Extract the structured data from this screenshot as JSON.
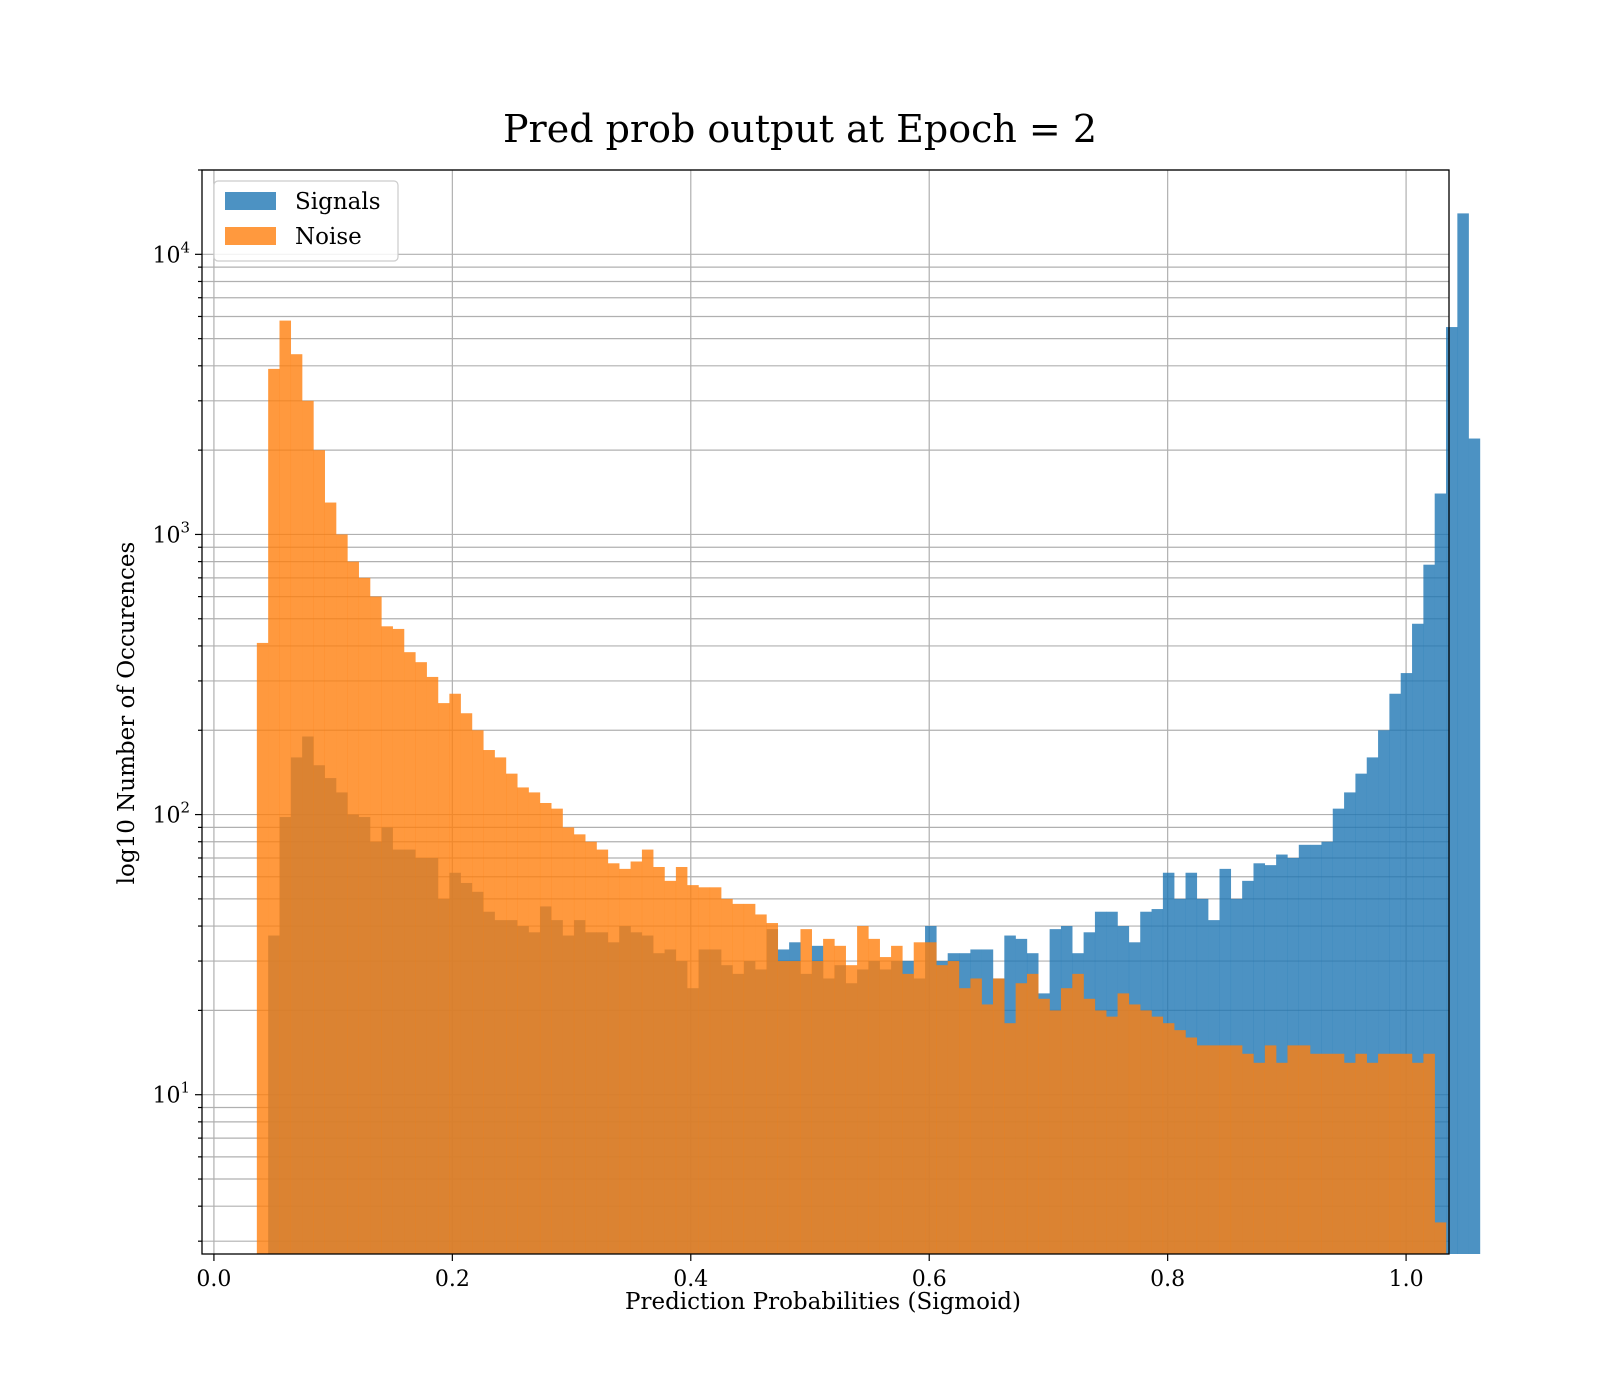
{
  "chart_data": {
    "type": "bar",
    "subtype": "overlapping histogram",
    "title": "Pred prob output at Epoch = 2",
    "xlabel": "Prediction Probabilities (Sigmoid)",
    "ylabel": "log10 Number of Occurences",
    "xlim": [
      -0.01,
      1.036
    ],
    "ylim": [
      2.7,
      20000
    ],
    "yscale": "log",
    "grid": true,
    "legend_position": "top-left",
    "x_ticks": [
      {
        "value": 0.0,
        "label": "0.0"
      },
      {
        "value": 0.2,
        "label": "0.2"
      },
      {
        "value": 0.4,
        "label": "0.4"
      },
      {
        "value": 0.6,
        "label": "0.6"
      },
      {
        "value": 0.8,
        "label": "0.8"
      },
      {
        "value": 1.0,
        "label": "1.0"
      }
    ],
    "y_ticks": [
      {
        "value": 10,
        "base": "10",
        "exp": "1"
      },
      {
        "value": 100,
        "base": "10",
        "exp": "2"
      },
      {
        "value": 1000,
        "base": "10",
        "exp": "3"
      },
      {
        "value": 10000,
        "base": "10",
        "exp": "4"
      }
    ],
    "bin_start": 0.036,
    "bin_width": 0.0095,
    "series": [
      {
        "name": "Signals",
        "color": "#1f77b4",
        "opacity": 0.8,
        "values": [
          0,
          37,
          98,
          160,
          190,
          150,
          135,
          120,
          100,
          98,
          80,
          90,
          75,
          75,
          70,
          70,
          50,
          62,
          57,
          53,
          45,
          42,
          42,
          40,
          38,
          47,
          42,
          37,
          42,
          38,
          38,
          35,
          40,
          38,
          37,
          32,
          33,
          30,
          24,
          33,
          33,
          29,
          27,
          30,
          28,
          39,
          33,
          35,
          27,
          34,
          26,
          29,
          25,
          28,
          30,
          28,
          30,
          30,
          26,
          40,
          30,
          32,
          32,
          33,
          33,
          26,
          37,
          36,
          32,
          23,
          39,
          40,
          32,
          38,
          45,
          45,
          40,
          35,
          45,
          46,
          62,
          50,
          62,
          50,
          42,
          64,
          50,
          58,
          67,
          66,
          72,
          70,
          78,
          78,
          80,
          105,
          120,
          140,
          160,
          200,
          270,
          320,
          480,
          780,
          1400,
          5500,
          14000,
          2200
        ]
      },
      {
        "name": "Noise",
        "color": "#ff7f0e",
        "opacity": 0.8,
        "values": [
          410,
          3900,
          5800,
          4400,
          3000,
          2000,
          1300,
          1000,
          800,
          700,
          600,
          470,
          460,
          380,
          350,
          310,
          250,
          270,
          230,
          200,
          170,
          160,
          140,
          125,
          120,
          110,
          105,
          90,
          85,
          80,
          75,
          67,
          64,
          68,
          75,
          65,
          58,
          65,
          56,
          55,
          55,
          50,
          48,
          48,
          44,
          41,
          30,
          30,
          39,
          30,
          36,
          34,
          29,
          40,
          36,
          31,
          34,
          27,
          35,
          35,
          29,
          30,
          24,
          26,
          21,
          26,
          18,
          25,
          27,
          22,
          20,
          24,
          27,
          22,
          20,
          19,
          23,
          21,
          20,
          19,
          18,
          17,
          16,
          15,
          15,
          15,
          15,
          14,
          13,
          15,
          13,
          15,
          15,
          14,
          14,
          14,
          13,
          14,
          13,
          14,
          14,
          14,
          13,
          14,
          3.5
        ]
      }
    ]
  }
}
